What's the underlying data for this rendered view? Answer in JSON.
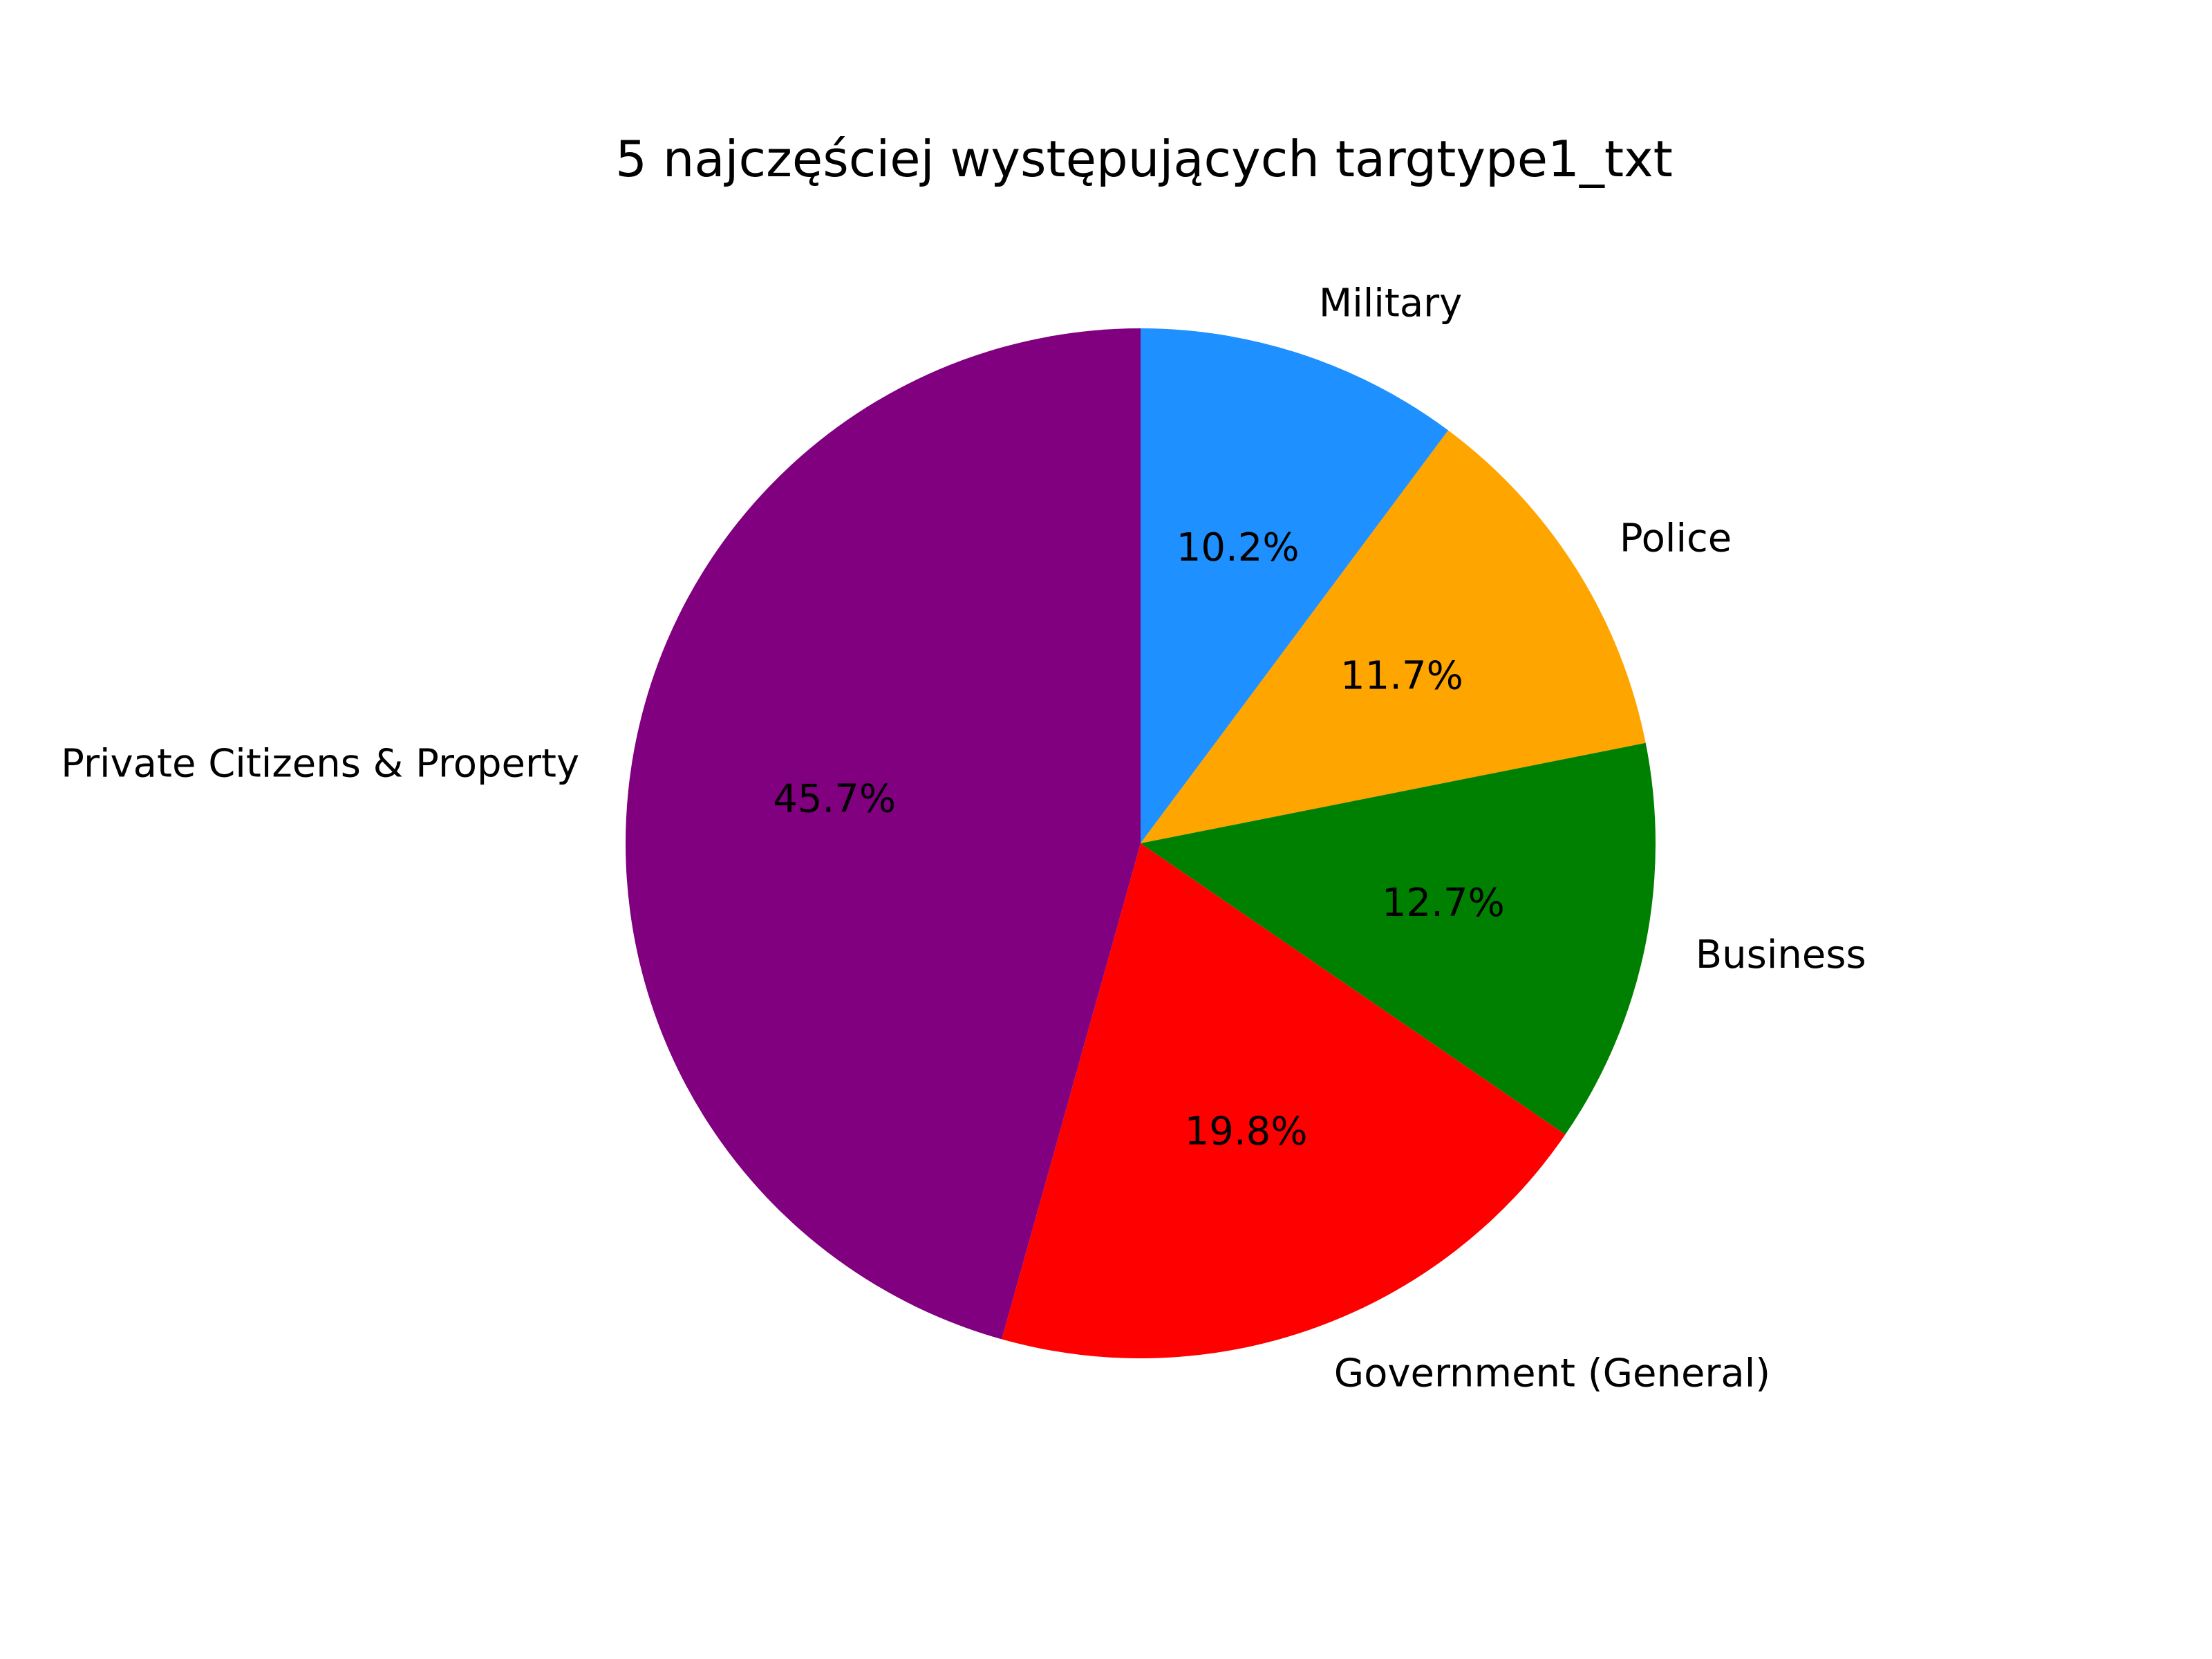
{
  "chart_data": {
    "type": "pie",
    "title": "5 najczęściej występujących targtype1_txt",
    "start_angle_deg": 90,
    "direction": "clockwise",
    "slices": [
      {
        "label": "Military",
        "value": 10.2,
        "pct_label": "10.2%",
        "color": "#1e90ff"
      },
      {
        "label": "Police",
        "value": 11.7,
        "pct_label": "11.7%",
        "color": "#ffa500"
      },
      {
        "label": "Business",
        "value": 12.7,
        "pct_label": "12.7%",
        "color": "#008000"
      },
      {
        "label": "Government (General)",
        "value": 19.8,
        "pct_label": "19.8%",
        "color": "#ff0000"
      },
      {
        "label": "Private Citizens & Property",
        "value": 45.7,
        "pct_label": "45.7%",
        "color": "#800080"
      }
    ]
  }
}
